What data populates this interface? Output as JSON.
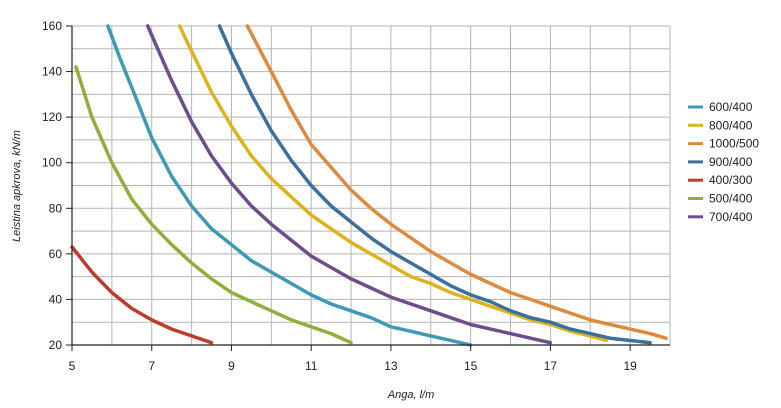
{
  "chart_data": {
    "type": "line",
    "xlabel": "Anga, l/m",
    "ylabel": "Leistina apkrova, kN/m",
    "xlim": [
      5,
      20
    ],
    "ylim": [
      20,
      160
    ],
    "x_ticks": [
      5,
      7,
      9,
      11,
      13,
      15,
      17,
      19
    ],
    "y_ticks": [
      20,
      40,
      60,
      80,
      100,
      120,
      140,
      160
    ],
    "x_minor_step": 1,
    "y_minor_step": 10,
    "grid": true,
    "legend_position": "right",
    "series": [
      {
        "name": "600/400",
        "color": "#3c9ab6",
        "points": [
          [
            5.9,
            160
          ],
          [
            6.2,
            146
          ],
          [
            6.5,
            133
          ],
          [
            7,
            111
          ],
          [
            7.5,
            94
          ],
          [
            8,
            81
          ],
          [
            8.5,
            71
          ],
          [
            9,
            64
          ],
          [
            9.5,
            57
          ],
          [
            10,
            52
          ],
          [
            10.5,
            47
          ],
          [
            11,
            42
          ],
          [
            11.5,
            38
          ],
          [
            12,
            35
          ],
          [
            12.5,
            32
          ],
          [
            13,
            28
          ],
          [
            13.5,
            26
          ],
          [
            14,
            24
          ],
          [
            14.5,
            22
          ],
          [
            15,
            20
          ]
        ]
      },
      {
        "name": "800/400",
        "color": "#e0b21a",
        "points": [
          [
            7.7,
            160
          ],
          [
            8,
            149
          ],
          [
            8.5,
            131
          ],
          [
            9,
            116
          ],
          [
            9.5,
            103
          ],
          [
            10,
            93
          ],
          [
            10.5,
            85
          ],
          [
            11,
            77
          ],
          [
            11.5,
            71
          ],
          [
            12,
            65
          ],
          [
            12.5,
            60
          ],
          [
            13,
            55
          ],
          [
            13.5,
            50
          ],
          [
            14,
            47
          ],
          [
            14.5,
            43
          ],
          [
            15,
            40
          ],
          [
            15.5,
            37
          ],
          [
            16,
            34
          ],
          [
            16.5,
            31
          ],
          [
            17,
            29
          ],
          [
            17.5,
            26
          ],
          [
            18,
            24
          ],
          [
            18.4,
            22
          ]
        ]
      },
      {
        "name": "1000/500",
        "color": "#dd8a3c",
        "points": [
          [
            9.4,
            160
          ],
          [
            10,
            140
          ],
          [
            10.5,
            123
          ],
          [
            11,
            108
          ],
          [
            11.5,
            98
          ],
          [
            12,
            88
          ],
          [
            12.5,
            80
          ],
          [
            13,
            73
          ],
          [
            13.5,
            67
          ],
          [
            14,
            61
          ],
          [
            14.5,
            56
          ],
          [
            15,
            51
          ],
          [
            15.5,
            47
          ],
          [
            16,
            43
          ],
          [
            16.5,
            40
          ],
          [
            17,
            37
          ],
          [
            17.5,
            34
          ],
          [
            18,
            31
          ],
          [
            18.5,
            29
          ],
          [
            19,
            27
          ],
          [
            19.5,
            25
          ],
          [
            19.9,
            23
          ]
        ]
      },
      {
        "name": "900/400",
        "color": "#3b6f9e",
        "points": [
          [
            8.7,
            160
          ],
          [
            9,
            148
          ],
          [
            9.5,
            130
          ],
          [
            10,
            114
          ],
          [
            10.5,
            101
          ],
          [
            11,
            90
          ],
          [
            11.5,
            81
          ],
          [
            12,
            74
          ],
          [
            12.5,
            67
          ],
          [
            13,
            61
          ],
          [
            13.5,
            56
          ],
          [
            14,
            51
          ],
          [
            14.5,
            46
          ],
          [
            15,
            42
          ],
          [
            15.5,
            39
          ],
          [
            16,
            35
          ],
          [
            16.5,
            32
          ],
          [
            17,
            30
          ],
          [
            17.5,
            27
          ],
          [
            18,
            25
          ],
          [
            18.5,
            23
          ],
          [
            19.5,
            21
          ]
        ]
      },
      {
        "name": "400/300",
        "color": "#bf3b2c",
        "points": [
          [
            5,
            63
          ],
          [
            5.5,
            52
          ],
          [
            6,
            43
          ],
          [
            6.5,
            36
          ],
          [
            7,
            31
          ],
          [
            7.5,
            27
          ],
          [
            8,
            24
          ],
          [
            8.5,
            21
          ]
        ]
      },
      {
        "name": "500/400",
        "color": "#8fae3a",
        "points": [
          [
            5.1,
            142
          ],
          [
            5.5,
            120
          ],
          [
            6,
            100
          ],
          [
            6.5,
            84
          ],
          [
            7,
            73
          ],
          [
            7.5,
            64
          ],
          [
            8,
            56
          ],
          [
            8.5,
            49
          ],
          [
            9,
            43
          ],
          [
            9.5,
            39
          ],
          [
            10,
            35
          ],
          [
            10.5,
            31
          ],
          [
            11,
            28
          ],
          [
            11.5,
            25
          ],
          [
            12,
            21
          ]
        ]
      },
      {
        "name": "700/400",
        "color": "#6e4c8d",
        "points": [
          [
            6.9,
            160
          ],
          [
            7.5,
            136
          ],
          [
            8,
            118
          ],
          [
            8.5,
            103
          ],
          [
            9,
            91
          ],
          [
            9.5,
            81
          ],
          [
            10,
            73
          ],
          [
            10.5,
            66
          ],
          [
            11,
            59
          ],
          [
            11.5,
            54
          ],
          [
            12,
            49
          ],
          [
            12.5,
            45
          ],
          [
            13,
            41
          ],
          [
            13.5,
            38
          ],
          [
            14,
            35
          ],
          [
            14.5,
            32
          ],
          [
            15,
            29
          ],
          [
            15.5,
            27
          ],
          [
            16,
            25
          ],
          [
            16.5,
            23
          ],
          [
            17,
            21
          ]
        ]
      }
    ]
  }
}
